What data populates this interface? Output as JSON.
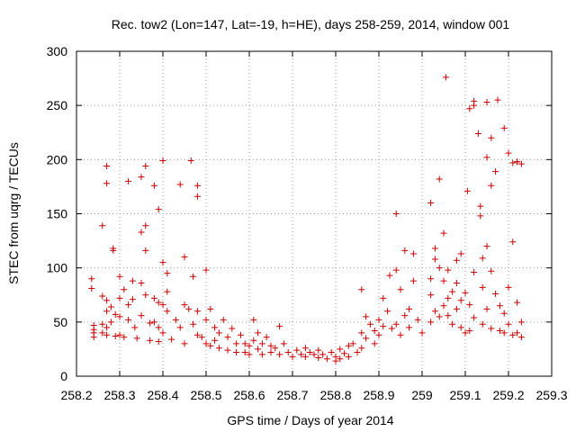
{
  "chart_data": {
    "type": "scatter",
    "title": "Rec. tow2 (Lon=147, Lat=-19, h=HE), days 258-259, 2014, window 001",
    "xlabel": "GPS time / Days of year 2014",
    "ylabel": "STEC from uqrg / TECUs",
    "xlim": [
      258.2,
      259.3
    ],
    "ylim": [
      0,
      300
    ],
    "x_ticks": [
      258.2,
      258.3,
      258.4,
      258.5,
      258.6,
      258.7,
      258.8,
      258.9,
      259,
      259.1,
      259.2,
      259.3
    ],
    "x_tick_labels": [
      "258.2",
      "258.3",
      "258.4",
      "258.5",
      "258.6",
      "258.7",
      "258.8",
      "258.9",
      "259",
      "259.1",
      "259.2",
      "259.3"
    ],
    "y_ticks": [
      0,
      50,
      100,
      150,
      200,
      250,
      300
    ],
    "y_tick_labels": [
      "0",
      "50",
      "100",
      "150",
      "200",
      "250",
      "300"
    ],
    "grid": true,
    "marker": "plus",
    "color": "#cc0000",
    "series": [
      {
        "points": [
          [
            258.235,
            90
          ],
          [
            258.235,
            81
          ],
          [
            258.24,
            47
          ],
          [
            258.24,
            43
          ],
          [
            258.24,
            40
          ],
          [
            258.24,
            36
          ],
          [
            258.26,
            139
          ],
          [
            258.26,
            74
          ],
          [
            258.26,
            48
          ],
          [
            258.26,
            40
          ],
          [
            258.27,
            194
          ],
          [
            258.27,
            178
          ],
          [
            258.27,
            70
          ],
          [
            258.27,
            60
          ],
          [
            258.27,
            45
          ],
          [
            258.27,
            38
          ],
          [
            258.28,
            64
          ],
          [
            258.28,
            50
          ],
          [
            258.285,
            118
          ],
          [
            258.285,
            116
          ],
          [
            258.29,
            57
          ],
          [
            258.29,
            37
          ],
          [
            258.3,
            92
          ],
          [
            258.3,
            72
          ],
          [
            258.3,
            55
          ],
          [
            258.3,
            38
          ],
          [
            258.31,
            80
          ],
          [
            258.31,
            36
          ],
          [
            258.32,
            180
          ],
          [
            258.32,
            66
          ],
          [
            258.32,
            52
          ],
          [
            258.33,
            88
          ],
          [
            258.33,
            71
          ],
          [
            258.335,
            45
          ],
          [
            258.34,
            35
          ],
          [
            258.35,
            184
          ],
          [
            258.35,
            133
          ],
          [
            258.35,
            86
          ],
          [
            258.35,
            56
          ],
          [
            258.36,
            194
          ],
          [
            258.36,
            139
          ],
          [
            258.36,
            116
          ],
          [
            258.36,
            75
          ],
          [
            258.37,
            49
          ],
          [
            258.37,
            33
          ],
          [
            258.38,
            176
          ],
          [
            258.38,
            72
          ],
          [
            258.38,
            50
          ],
          [
            258.39,
            154
          ],
          [
            258.39,
            68
          ],
          [
            258.39,
            45
          ],
          [
            258.39,
            32
          ],
          [
            258.4,
            199
          ],
          [
            258.4,
            105
          ],
          [
            258.4,
            66
          ],
          [
            258.4,
            40
          ],
          [
            258.41,
            95
          ],
          [
            258.41,
            78
          ],
          [
            258.41,
            60
          ],
          [
            258.42,
            34
          ],
          [
            258.43,
            52
          ],
          [
            258.44,
            177
          ],
          [
            258.44,
            45
          ],
          [
            258.45,
            110
          ],
          [
            258.45,
            66
          ],
          [
            258.45,
            30
          ],
          [
            258.46,
            62
          ],
          [
            258.465,
            199
          ],
          [
            258.47,
            92
          ],
          [
            258.47,
            48
          ],
          [
            258.48,
            176
          ],
          [
            258.48,
            166
          ],
          [
            258.48,
            60
          ],
          [
            258.48,
            38
          ],
          [
            258.49,
            36
          ],
          [
            258.5,
            98
          ],
          [
            258.5,
            52
          ],
          [
            258.5,
            30
          ],
          [
            258.51,
            62
          ],
          [
            258.51,
            28
          ],
          [
            258.52,
            45
          ],
          [
            258.52,
            33
          ],
          [
            258.53,
            40
          ],
          [
            258.53,
            26
          ],
          [
            258.54,
            52
          ],
          [
            258.55,
            36
          ],
          [
            258.55,
            24
          ],
          [
            258.56,
            44
          ],
          [
            258.57,
            30
          ],
          [
            258.57,
            22
          ],
          [
            258.58,
            38
          ],
          [
            258.59,
            30
          ],
          [
            258.59,
            22
          ],
          [
            258.6,
            28
          ],
          [
            258.6,
            20
          ],
          [
            258.61,
            52
          ],
          [
            258.61,
            33
          ],
          [
            258.62,
            40
          ],
          [
            258.62,
            25
          ],
          [
            258.63,
            30
          ],
          [
            258.63,
            20
          ],
          [
            258.64,
            36
          ],
          [
            258.65,
            28
          ],
          [
            258.65,
            22
          ],
          [
            258.66,
            26
          ],
          [
            258.67,
            46
          ],
          [
            258.67,
            20
          ],
          [
            258.68,
            30
          ],
          [
            258.69,
            22
          ],
          [
            258.7,
            18
          ],
          [
            258.71,
            24
          ],
          [
            258.72,
            20
          ],
          [
            258.73,
            26
          ],
          [
            258.73,
            18
          ],
          [
            258.74,
            22
          ],
          [
            258.75,
            20
          ],
          [
            258.76,
            24
          ],
          [
            258.76,
            17
          ],
          [
            258.77,
            20
          ],
          [
            258.78,
            16
          ],
          [
            258.79,
            22
          ],
          [
            258.8,
            18
          ],
          [
            258.8,
            14
          ],
          [
            258.81,
            25
          ],
          [
            258.81,
            16
          ],
          [
            258.82,
            21
          ],
          [
            258.83,
            28
          ],
          [
            258.83,
            18
          ],
          [
            258.84,
            30
          ],
          [
            258.85,
            22
          ],
          [
            258.86,
            80
          ],
          [
            258.86,
            40
          ],
          [
            258.86,
            26
          ],
          [
            258.87,
            55
          ],
          [
            258.87,
            35
          ],
          [
            258.88,
            48
          ],
          [
            258.89,
            42
          ],
          [
            258.89,
            30
          ],
          [
            258.9,
            52
          ],
          [
            258.9,
            38
          ],
          [
            258.91,
            72
          ],
          [
            258.91,
            46
          ],
          [
            258.92,
            60
          ],
          [
            258.925,
            93
          ],
          [
            258.93,
            44
          ],
          [
            258.94,
            150
          ],
          [
            258.94,
            98
          ],
          [
            258.94,
            48
          ],
          [
            258.95,
            80
          ],
          [
            258.95,
            38
          ],
          [
            258.96,
            116
          ],
          [
            258.96,
            56
          ],
          [
            258.97,
            62
          ],
          [
            258.97,
            45
          ],
          [
            258.98,
            113
          ],
          [
            258.98,
            88
          ],
          [
            258.99,
            52
          ],
          [
            259,
            40
          ],
          [
            259.02,
            160
          ],
          [
            259.02,
            90
          ],
          [
            259.02,
            75
          ],
          [
            259.02,
            50
          ],
          [
            259.03,
            118
          ],
          [
            259.03,
            108
          ],
          [
            259.03,
            60
          ],
          [
            259.04,
            182
          ],
          [
            259.04,
            100
          ],
          [
            259.04,
            55
          ],
          [
            259.05,
            132
          ],
          [
            259.05,
            88
          ],
          [
            259.05,
            65
          ],
          [
            259.055,
            276
          ],
          [
            259.06,
            98
          ],
          [
            259.06,
            72
          ],
          [
            259.06,
            56
          ],
          [
            259.07,
            78
          ],
          [
            259.07,
            48
          ],
          [
            259.08,
            107
          ],
          [
            259.08,
            86
          ],
          [
            259.08,
            62
          ],
          [
            259.09,
            113
          ],
          [
            259.09,
            70
          ],
          [
            259.09,
            45
          ],
          [
            259.1,
            77
          ],
          [
            259.1,
            40
          ],
          [
            259.105,
            171
          ],
          [
            259.11,
            247
          ],
          [
            259.11,
            66
          ],
          [
            259.11,
            42
          ],
          [
            259.12,
            254
          ],
          [
            259.12,
            250
          ],
          [
            259.12,
            96
          ],
          [
            259.12,
            54
          ],
          [
            259.13,
            224
          ],
          [
            259.135,
            157
          ],
          [
            259.135,
            148
          ],
          [
            259.14,
            109
          ],
          [
            259.14,
            82
          ],
          [
            259.14,
            48
          ],
          [
            259.15,
            253
          ],
          [
            259.15,
            202
          ],
          [
            259.15,
            120
          ],
          [
            259.15,
            62
          ],
          [
            259.16,
            220
          ],
          [
            259.16,
            176
          ],
          [
            259.16,
            97
          ],
          [
            259.16,
            44
          ],
          [
            259.17,
            189
          ],
          [
            259.17,
            76
          ],
          [
            259.175,
            255
          ],
          [
            259.18,
            65
          ],
          [
            259.18,
            42
          ],
          [
            259.19,
            229
          ],
          [
            259.19,
            58
          ],
          [
            259.19,
            40
          ],
          [
            259.2,
            206
          ],
          [
            259.2,
            82
          ],
          [
            259.2,
            48
          ],
          [
            259.21,
            124
          ],
          [
            259.21,
            197
          ],
          [
            259.21,
            38
          ],
          [
            259.22,
            198
          ],
          [
            259.22,
            198
          ],
          [
            259.22,
            68
          ],
          [
            259.22,
            40
          ],
          [
            259.23,
            196
          ],
          [
            259.23,
            50
          ],
          [
            259.23,
            36
          ]
        ]
      }
    ]
  }
}
